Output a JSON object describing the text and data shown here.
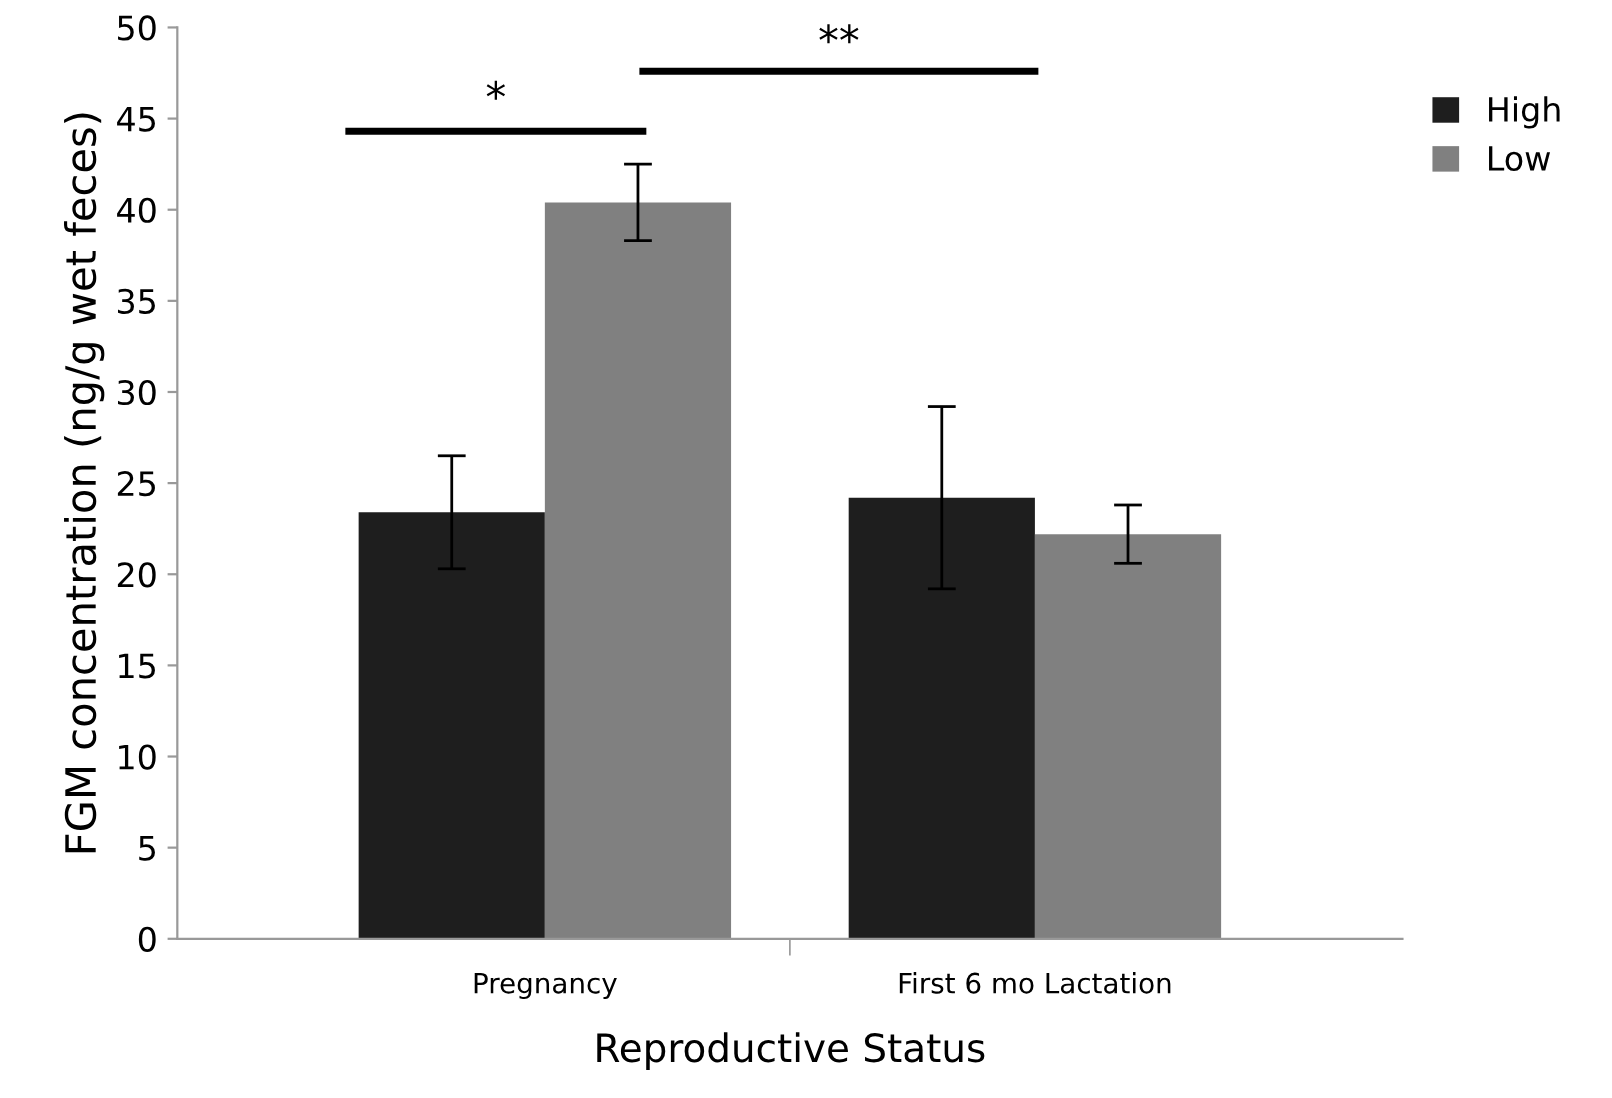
{
  "chart_data": {
    "type": "bar",
    "xlabel": "Reproductive Status",
    "ylabel": "FGM concentration (ng/g wet feces)",
    "categories": [
      "Pregnancy",
      "First 6 mo Lactation"
    ],
    "series": [
      {
        "name": "High",
        "color": "#1e1e1e",
        "values": [
          23.4,
          24.2
        ],
        "errors": [
          3.1,
          5.0
        ]
      },
      {
        "name": "Low",
        "color": "#808080",
        "values": [
          40.4,
          22.2
        ],
        "errors": [
          2.1,
          1.6
        ]
      }
    ],
    "ylim": [
      0,
      50
    ],
    "yticks": [
      0,
      5,
      10,
      15,
      20,
      25,
      30,
      35,
      40,
      45,
      50
    ],
    "grid": false,
    "legend": "right",
    "annotations": [
      "*",
      "**"
    ]
  }
}
